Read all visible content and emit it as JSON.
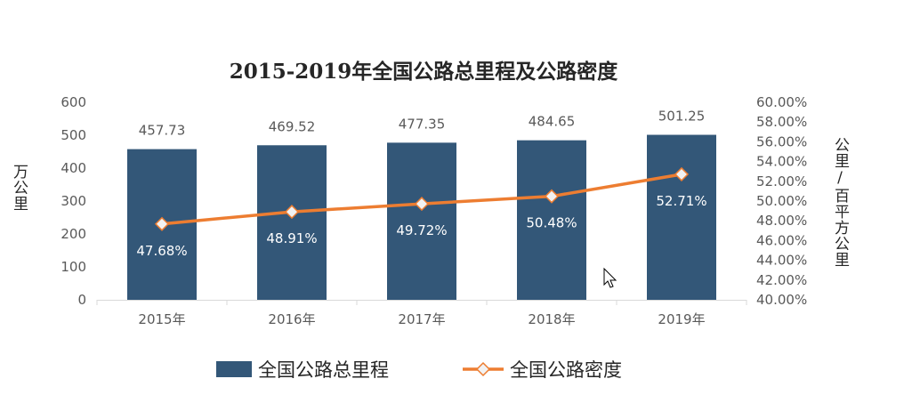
{
  "chart_data": {
    "type": "bar+line",
    "title": "2015-2019年全国公路总里程及公路密度",
    "categories": [
      "2015年",
      "2016年",
      "2017年",
      "2018年",
      "2019年"
    ],
    "series": [
      {
        "name": "全国公路总里程",
        "type": "bar",
        "axis": "left",
        "values": [
          457.73,
          469.52,
          477.35,
          484.65,
          501.25
        ],
        "labels": [
          "457.73",
          "469.52",
          "477.35",
          "484.65",
          "501.25"
        ],
        "color": "#335778"
      },
      {
        "name": "全国公路密度",
        "type": "line",
        "axis": "right",
        "values": [
          47.68,
          48.91,
          49.72,
          50.48,
          52.71
        ],
        "labels": [
          "47.68%",
          "48.91%",
          "49.72%",
          "50.48%",
          "52.71%"
        ],
        "color": "#ED7D31"
      }
    ],
    "ylabel": "万公里",
    "y2label": "公里/百平方公里",
    "ylim": [
      0,
      600
    ],
    "yticks": [
      "0",
      "100",
      "200",
      "300",
      "400",
      "500",
      "600"
    ],
    "y2lim": [
      40,
      60
    ],
    "y2ticks": [
      "40.00%",
      "42.00%",
      "44.00%",
      "46.00%",
      "48.00%",
      "50.00%",
      "52.00%",
      "54.00%",
      "56.00%",
      "58.00%",
      "60.00%"
    ],
    "grid": false,
    "legend_position": "bottom"
  }
}
